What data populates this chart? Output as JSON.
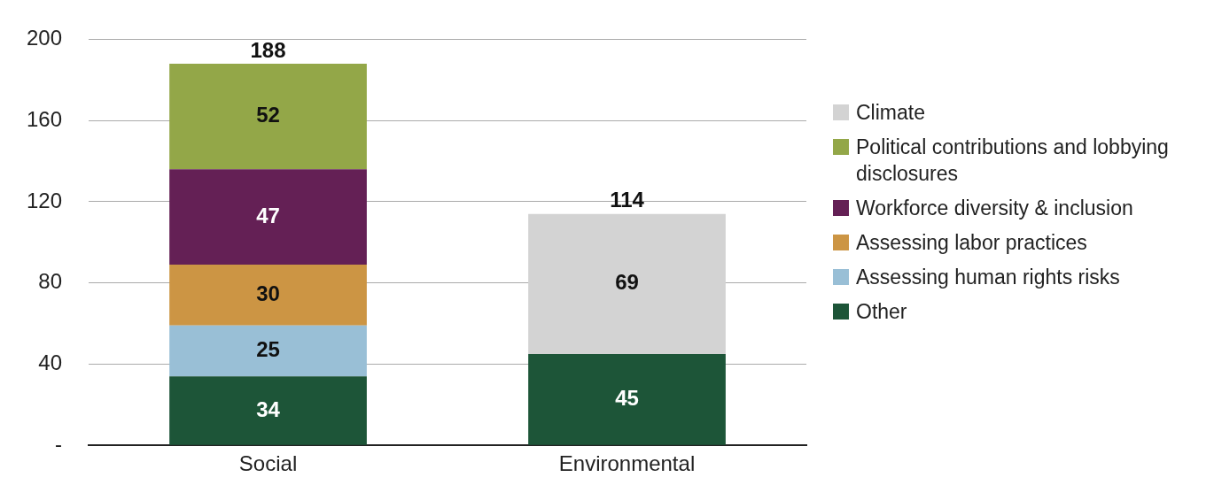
{
  "chart_data": {
    "type": "bar",
    "stacked": true,
    "categories": [
      "Social",
      "Environmental"
    ],
    "series": [
      {
        "name": "Other",
        "color": "#1d5538",
        "values": [
          34,
          45
        ]
      },
      {
        "name": "Assessing human rights risks",
        "color": "#99bfd6",
        "values": [
          25,
          null
        ]
      },
      {
        "name": "Assessing labor practices",
        "color": "#cc9544",
        "values": [
          30,
          null
        ]
      },
      {
        "name": "Workforce diversity & inclusion",
        "color": "#642055",
        "values": [
          47,
          null
        ]
      },
      {
        "name": "Political contributions and lobbying disclosures",
        "color": "#93a748",
        "values": [
          52,
          null
        ]
      },
      {
        "name": "Climate",
        "color": "#d3d3d3",
        "values": [
          null,
          69
        ]
      }
    ],
    "ylim": [
      0,
      200
    ],
    "yticks": [
      {
        "value": 0,
        "label": "-"
      },
      40,
      80,
      120,
      160,
      200
    ],
    "grid": "y",
    "legend": "right",
    "data_labels": true,
    "totals": [
      "188",
      "114"
    ]
  }
}
